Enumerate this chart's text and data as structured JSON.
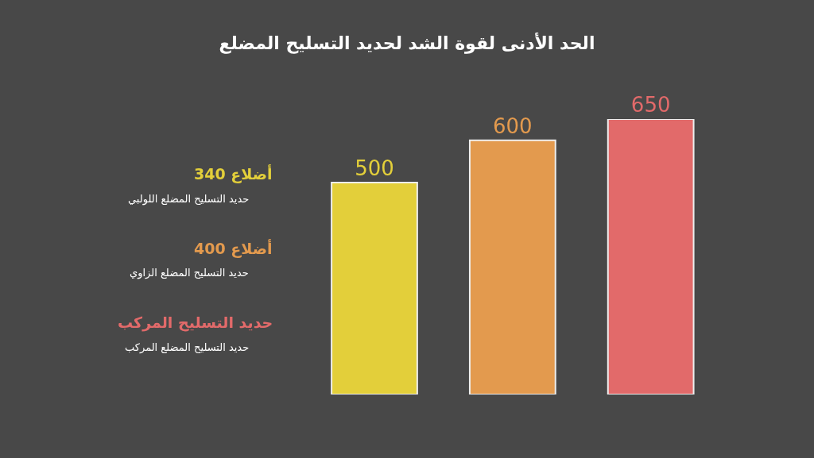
{
  "chart_data": {
    "type": "bar",
    "title": "الحد الأدنى لقوة الشد لحديد التسليح المضلع",
    "categories": [
      null,
      null,
      null
    ],
    "values": [
      500,
      600,
      650
    ],
    "colors": [
      "#e3cf3a",
      "#e39a4e",
      "#e26a6a"
    ],
    "data_labels": true,
    "annotations": [
      "أضلاع 340",
      "حديد التسليح المضلع اللولبي",
      "أضلاع 400",
      "حديد التسليح المضلع الزاوي",
      "حديد التسليح المركب",
      "حديد التسليح المضلع المركب"
    ]
  }
}
